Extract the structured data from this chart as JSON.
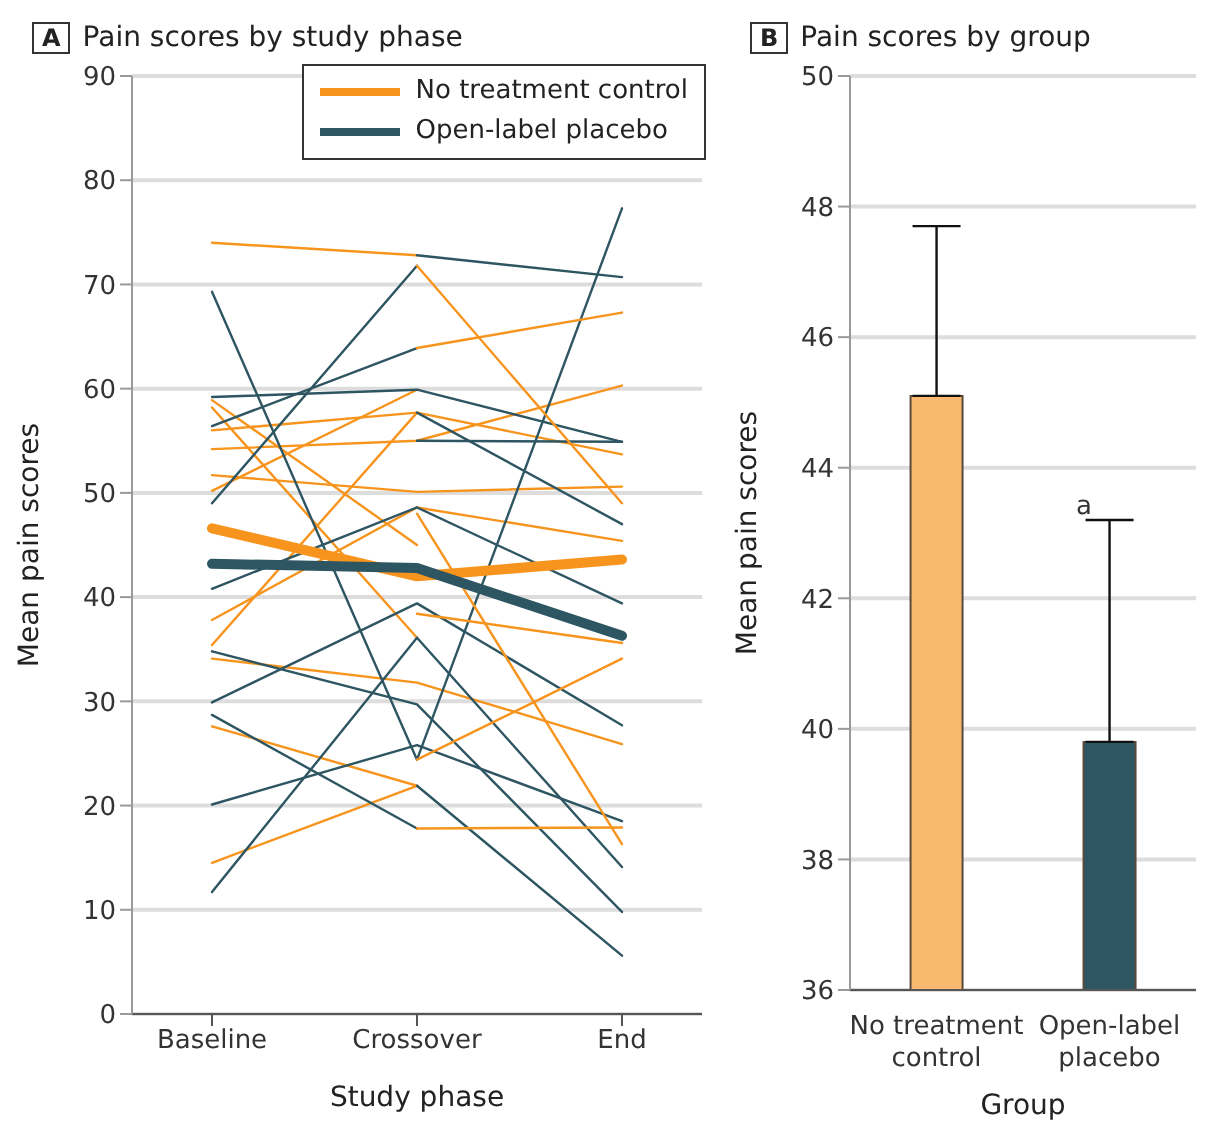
{
  "chart_data": [
    {
      "type": "line",
      "title": "Pain scores by study phase",
      "xlabel": "Study phase",
      "ylabel": "Mean pain scores",
      "categories": [
        "Baseline",
        "Crossover",
        "End"
      ],
      "ylim": [
        0,
        90
      ],
      "yticks": [
        0,
        10,
        20,
        30,
        40,
        50,
        60,
        70,
        80,
        90
      ],
      "grid": "y",
      "legend": "top right",
      "marker": "none",
      "line_style": "solid",
      "annotations": [
        "A"
      ],
      "series": [
        {
          "color": "#f7941d",
          "values": [
            74,
            72.8,
            null
          ]
        },
        {
          "color": "#f7941d",
          "values": [
            58.9,
            45,
            null
          ]
        },
        {
          "color": "#f7941d",
          "values": [
            58.2,
            36.1,
            null
          ]
        },
        {
          "color": "#f7941d",
          "values": [
            56,
            57.7,
            53.7
          ]
        },
        {
          "color": "#f7941d",
          "values": [
            54.2,
            55,
            60.3
          ]
        },
        {
          "color": "#f7941d",
          "values": [
            51.7,
            50.1,
            50.6
          ]
        },
        {
          "color": "#f7941d",
          "values": [
            50.2,
            59.9,
            null
          ]
        },
        {
          "color": "#f7941d",
          "values": [
            37.8,
            48.6,
            45.4
          ]
        },
        {
          "color": "#f7941d",
          "values": [
            35.4,
            57.7,
            null
          ]
        },
        {
          "color": "#f7941d",
          "values": [
            34.1,
            31.8,
            25.9
          ]
        },
        {
          "color": "#f7941d",
          "values": [
            27.6,
            21.9,
            null
          ]
        },
        {
          "color": "#f7941d",
          "values": [
            14.5,
            21.9,
            null
          ]
        },
        {
          "color": "#2e5562",
          "values": [
            69.3,
            24.4,
            77.3
          ]
        },
        {
          "color": "#2e5562",
          "values": [
            59.2,
            59.9,
            54.9
          ]
        },
        {
          "color": "#2e5562",
          "values": [
            56.4,
            63.9,
            null
          ]
        },
        {
          "color": "#2e5562",
          "values": [
            49,
            71.8,
            null
          ]
        },
        {
          "color": "#2e5562",
          "values": [
            40.8,
            48.6,
            39.4
          ]
        },
        {
          "color": "#2e5562",
          "values": [
            34.8,
            29.7,
            9.8
          ]
        },
        {
          "color": "#2e5562",
          "values": [
            29.9,
            39.4,
            27.7
          ]
        },
        {
          "color": "#2e5562",
          "values": [
            28.7,
            17.8,
            null
          ]
        },
        {
          "color": "#2e5562",
          "values": [
            20.1,
            25.8,
            18.5
          ]
        },
        {
          "color": "#2e5562",
          "values": [
            11.7,
            36.1,
            14.1
          ]
        },
        {
          "color": "#2e5562",
          "values": [
            null,
            72.8,
            70.7
          ]
        },
        {
          "color": "#2e5562",
          "values": [
            null,
            57.7,
            47
          ]
        },
        {
          "color": "#2e5562",
          "values": [
            null,
            55,
            54.9
          ]
        },
        {
          "color": "#2e5562",
          "values": [
            null,
            21.9,
            5.6
          ]
        },
        {
          "color": "#f7941d",
          "values": [
            null,
            71.8,
            49
          ]
        },
        {
          "color": "#f7941d",
          "values": [
            null,
            63.9,
            67.3
          ]
        },
        {
          "color": "#f7941d",
          "values": [
            null,
            38.4,
            35.6
          ]
        },
        {
          "color": "#f7941d",
          "values": [
            null,
            17.8,
            17.9
          ]
        },
        {
          "color": "#f7941d",
          "values": [
            null,
            24.4,
            34.1
          ]
        },
        {
          "color": "#f7941d",
          "values": [
            null,
            48,
            16.3
          ]
        },
        {
          "name": "No treatment control",
          "color": "#f7941d",
          "values": [
            46.6,
            42,
            43.6
          ]
        },
        {
          "name": "Open-label placebo",
          "color": "#2e5562",
          "values": [
            43.2,
            42.8,
            36.3
          ]
        }
      ]
    },
    {
      "type": "bar",
      "title": "Pain scores by group",
      "xlabel": "Group",
      "ylabel": "Mean pain scores",
      "categories": [
        "No treatment control",
        "Open-label placebo"
      ],
      "values": [
        45.1,
        39.8
      ],
      "colors": [
        "#f9b96f",
        "#2e5562"
      ],
      "errors": [
        [
          45.1,
          47.7
        ],
        [
          39.8,
          43.2
        ]
      ],
      "ylim": [
        36,
        50
      ],
      "yticks": [
        36,
        38,
        40,
        42,
        44,
        46,
        48,
        50
      ],
      "grid": "y",
      "annotations": [
        "B",
        "a"
      ]
    }
  ]
}
